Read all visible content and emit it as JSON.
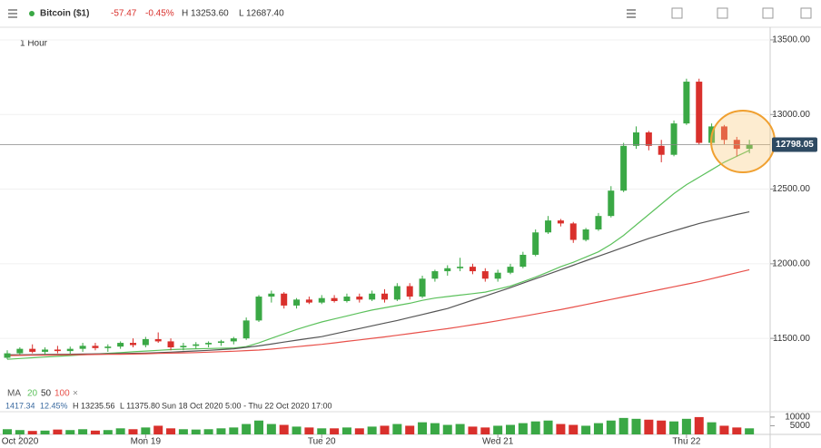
{
  "header": {
    "instrument": "Bitcoin ($1)",
    "change": "-57.47",
    "change_pct": "-0.45%",
    "high": "H 13253.60",
    "low": "L 12687.40"
  },
  "interval": "1 Hour",
  "stats": {
    "change": "1417.34",
    "change_pct": "12.45%",
    "high": "H 13235.56",
    "low": "L 11375.80",
    "range": "Sun 18 Oct 2020 5:00 - Thu 22 Oct 2020 17:00"
  },
  "ma_label": "MA",
  "ma_close": "×",
  "chart_data": {
    "type": "candlestick",
    "categories": [
      null,
      "Oct 2020",
      null,
      null,
      null,
      null,
      null,
      null,
      null,
      null,
      null,
      "Mon 19",
      null,
      null,
      null,
      null,
      null,
      null,
      null,
      null,
      null,
      null,
      null,
      null,
      null,
      "Tue 20",
      null,
      null,
      null,
      null,
      null,
      null,
      null,
      null,
      null,
      null,
      null,
      null,
      null,
      "Wed 21",
      null,
      null,
      null,
      null,
      null,
      null,
      null,
      null,
      null,
      null,
      null,
      null,
      null,
      null,
      "Thu 22",
      null,
      null,
      null,
      null,
      null
    ],
    "candles": {
      "up_color": "#3aa845",
      "down_color": "#d9302c",
      "open": [
        11370,
        11400,
        11430,
        11410,
        11425,
        11415,
        11430,
        11450,
        11435,
        11445,
        11470,
        11455,
        11495,
        11480,
        11440,
        11450,
        11460,
        11470,
        11480,
        11500,
        11620,
        11780,
        11800,
        11720,
        11760,
        11740,
        11770,
        11750,
        11780,
        11760,
        11800,
        11760,
        11850,
        11780,
        11900,
        11950,
        11970,
        11980,
        11950,
        11900,
        11940,
        11980,
        12060,
        12210,
        12290,
        12270,
        12160,
        12230,
        12320,
        12490,
        12790,
        12880,
        12790,
        12730,
        12940,
        13220,
        12810,
        12920,
        12830,
        12770
      ],
      "high": [
        11420,
        11440,
        11460,
        11440,
        11450,
        11445,
        11470,
        11470,
        11460,
        11480,
        11500,
        11510,
        11540,
        11500,
        11470,
        11475,
        11480,
        11490,
        11510,
        11640,
        11790,
        11820,
        11810,
        11770,
        11780,
        11790,
        11790,
        11800,
        11800,
        11820,
        11830,
        11870,
        11870,
        11920,
        11960,
        11990,
        12040,
        12000,
        11970,
        11960,
        12000,
        12080,
        12230,
        12320,
        12300,
        12280,
        12240,
        12340,
        12520,
        12810,
        12920,
        12890,
        12830,
        12960,
        13240,
        13240,
        12940,
        12930,
        12850,
        12830
      ],
      "low": [
        11360,
        11390,
        11400,
        11390,
        11400,
        11395,
        11410,
        11420,
        11410,
        11430,
        11440,
        11440,
        11470,
        11420,
        11420,
        11430,
        11440,
        11450,
        11460,
        11490,
        11610,
        11740,
        11700,
        11700,
        11730,
        11730,
        11740,
        11740,
        11740,
        11750,
        11740,
        11750,
        11760,
        11770,
        11880,
        11920,
        11950,
        11930,
        11880,
        11880,
        11930,
        11970,
        12050,
        12200,
        12250,
        12140,
        12150,
        12220,
        12310,
        12480,
        12770,
        12760,
        12680,
        12720,
        12930,
        12800,
        12790,
        12800,
        12720,
        12740
      ],
      "close": [
        11400,
        11430,
        11410,
        11425,
        11415,
        11430,
        11450,
        11435,
        11445,
        11470,
        11455,
        11495,
        11480,
        11440,
        11450,
        11460,
        11470,
        11480,
        11500,
        11620,
        11780,
        11800,
        11720,
        11760,
        11740,
        11770,
        11750,
        11780,
        11760,
        11800,
        11760,
        11850,
        11780,
        11900,
        11950,
        11970,
        11980,
        11950,
        11900,
        11940,
        11980,
        12060,
        12210,
        12290,
        12270,
        12160,
        12230,
        12320,
        12490,
        12790,
        12880,
        12790,
        12730,
        12940,
        13220,
        12810,
        12920,
        12830,
        12770,
        12798.05
      ]
    },
    "series": [
      {
        "name": "20",
        "color": "#5cc15c",
        "values": [
          11360,
          11365,
          11370,
          11375,
          11380,
          11385,
          11390,
          11395,
          11400,
          11405,
          11410,
          11415,
          11420,
          11425,
          11428,
          11430,
          11432,
          11434,
          11436,
          11445,
          11470,
          11500,
          11530,
          11560,
          11585,
          11610,
          11630,
          11650,
          11670,
          11690,
          11705,
          11720,
          11735,
          11755,
          11770,
          11780,
          11790,
          11800,
          11810,
          11830,
          11850,
          11880,
          11910,
          11945,
          11980,
          12010,
          12045,
          12080,
          12130,
          12190,
          12260,
          12330,
          12400,
          12470,
          12530,
          12580,
          12630,
          12680,
          12720,
          12760
        ]
      },
      {
        "name": "50",
        "color": "#555555",
        "values": [
          11390,
          11390,
          11391,
          11392,
          11393,
          11394,
          11395,
          11396,
          11397,
          11398,
          11400,
          11402,
          11405,
          11408,
          11412,
          11416,
          11420,
          11425,
          11430,
          11440,
          11450,
          11462,
          11475,
          11488,
          11500,
          11512,
          11530,
          11548,
          11566,
          11584,
          11602,
          11620,
          11640,
          11660,
          11680,
          11700,
          11728,
          11756,
          11784,
          11812,
          11840,
          11870,
          11900,
          11930,
          11960,
          11990,
          12020,
          12050,
          12080,
          12110,
          12140,
          12170,
          12195,
          12220,
          12245,
          12270,
          12290,
          12310,
          12330,
          12348
        ]
      },
      {
        "name": "100",
        "color": "#e8504a",
        "values": [
          11385,
          11386,
          11387,
          11388,
          11389,
          11390,
          11391,
          11392,
          11393,
          11394,
          11395,
          11397,
          11399,
          11401,
          11403,
          11405,
          11408,
          11411,
          11414,
          11418,
          11422,
          11428,
          11436,
          11444,
          11452,
          11460,
          11470,
          11480,
          11490,
          11500,
          11510,
          11521,
          11532,
          11543,
          11554,
          11565,
          11578,
          11591,
          11604,
          11618,
          11633,
          11648,
          11663,
          11678,
          11693,
          11710,
          11727,
          11744,
          11761,
          11778,
          11795,
          11812,
          11829,
          11846,
          11863,
          11880,
          11900,
          11920,
          11940,
          11960
        ]
      }
    ],
    "ylim": [
      11200,
      13580
    ],
    "yticks": [
      {
        "value": 11500,
        "label": "11500.00"
      },
      {
        "value": 12000,
        "label": "12000.00"
      },
      {
        "value": 12500,
        "label": "12500.00"
      },
      {
        "value": 13000,
        "label": "13000.00"
      },
      {
        "value": 13500,
        "label": "13500.00"
      }
    ],
    "volume": {
      "values": [
        3000,
        2500,
        2000,
        2200,
        2800,
        2500,
        3000,
        2200,
        2500,
        3500,
        3000,
        4000,
        5000,
        3500,
        3000,
        2800,
        3000,
        3500,
        4000,
        6000,
        8000,
        6000,
        5500,
        4500,
        4000,
        3500,
        3500,
        4000,
        3500,
        4500,
        5000,
        6000,
        5000,
        7000,
        6500,
        5500,
        6000,
        4500,
        4000,
        5000,
        5500,
        6500,
        7500,
        8000,
        6000,
        5500,
        5000,
        6500,
        8000,
        9500,
        9000,
        8500,
        8000,
        7500,
        9000,
        10000,
        7000,
        5000,
        4000,
        3500
      ],
      "ylim": [
        0,
        11000
      ],
      "yticks": [
        5000,
        10000
      ]
    }
  }
}
